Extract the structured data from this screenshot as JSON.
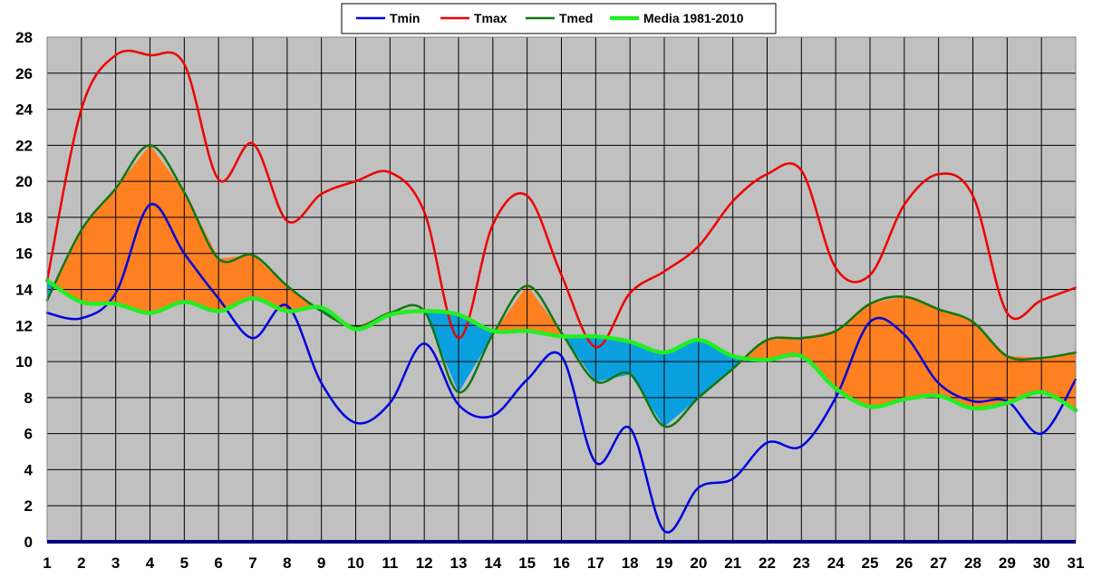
{
  "chart_data": {
    "type": "line",
    "x": [
      1,
      2,
      3,
      4,
      5,
      6,
      7,
      8,
      9,
      10,
      11,
      12,
      13,
      14,
      15,
      16,
      17,
      18,
      19,
      20,
      21,
      22,
      23,
      24,
      25,
      26,
      27,
      28,
      29,
      30,
      31
    ],
    "xlim": [
      1,
      31
    ],
    "ylim": [
      0,
      28
    ],
    "y_ticks": [
      0,
      2,
      4,
      6,
      8,
      10,
      12,
      14,
      16,
      18,
      20,
      22,
      24,
      26,
      28
    ],
    "grid": true,
    "legend_position": "top",
    "series": [
      {
        "name": "Tmin",
        "color": "#0000dd",
        "values": [
          12.7,
          12.4,
          13.8,
          18.7,
          16.0,
          13.5,
          11.3,
          13.1,
          8.8,
          6.6,
          7.7,
          11.0,
          7.6,
          7.0,
          9.0,
          10.3,
          4.4,
          6.3,
          0.6,
          3.0,
          3.5,
          5.5,
          5.3,
          8.0,
          12.2,
          11.5,
          8.8,
          7.8,
          7.8,
          6.0,
          9.0
        ]
      },
      {
        "name": "Tmax",
        "color": "#ee0000",
        "values": [
          14.5,
          24.0,
          27.0,
          27.0,
          26.5,
          20.1,
          22.1,
          17.8,
          19.3,
          20.0,
          20.5,
          18.3,
          11.3,
          17.6,
          19.2,
          14.8,
          10.8,
          13.8,
          15.0,
          16.4,
          18.9,
          20.4,
          20.6,
          15.2,
          14.8,
          18.7,
          20.4,
          19.2,
          12.7,
          13.4,
          14.1
        ]
      },
      {
        "name": "Tmed",
        "color": "#117711",
        "values": [
          13.4,
          17.3,
          19.6,
          22.0,
          19.4,
          15.7,
          15.9,
          14.2,
          12.8,
          11.9,
          12.7,
          12.8,
          8.3,
          11.5,
          14.2,
          11.6,
          8.9,
          9.3,
          6.4,
          8.0,
          9.6,
          11.2,
          11.3,
          11.7,
          13.2,
          13.6,
          12.9,
          12.2,
          10.3,
          10.2,
          10.5
        ]
      },
      {
        "name": "Media 1981-2010",
        "color": "#22ee22",
        "values": [
          14.5,
          13.3,
          13.2,
          12.7,
          13.3,
          12.8,
          13.5,
          12.8,
          13.0,
          11.8,
          12.6,
          12.8,
          12.6,
          11.7,
          11.7,
          11.4,
          11.4,
          11.1,
          10.5,
          11.2,
          10.3,
          10.1,
          10.3,
          8.5,
          7.5,
          7.9,
          8.1,
          7.4,
          7.7,
          8.3,
          7.3
        ]
      }
    ],
    "fills": {
      "above_normal": "#ff8020",
      "below_normal": "#0aa0e0"
    }
  }
}
